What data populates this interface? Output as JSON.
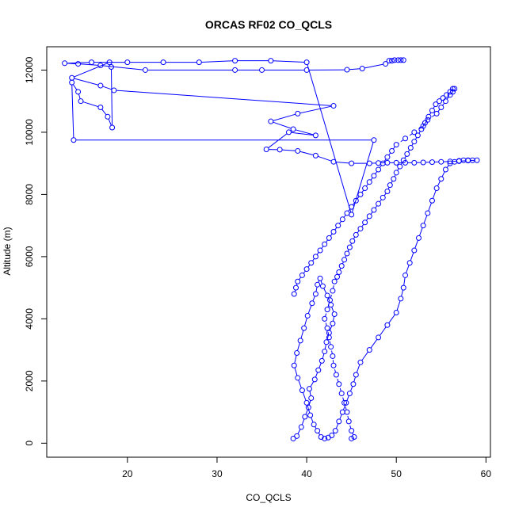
{
  "chart_data": {
    "type": "line",
    "title": "ORCAS RF02 CO_QCLS",
    "xlabel": "CO_QCLS",
    "ylabel": "Altitude (m)",
    "xlim": [
      11.0,
      60.5
    ],
    "ylim": [
      -450,
      12750
    ],
    "xticks": [
      20,
      30,
      40,
      50,
      60
    ],
    "yticks": [
      0,
      2000,
      4000,
      6000,
      8000,
      10000,
      12000
    ],
    "grid": false,
    "series_color": "#0000ff",
    "series": [
      {
        "style": "solid",
        "x": [
          38.5,
          38.9,
          39.4,
          39.8,
          40.2,
          40.5,
          40.3,
          40.9,
          41.3,
          41.7,
          42.0,
          42.2,
          42.5,
          42.9,
          43.1,
          42.7,
          42.3,
          41.8,
          41.5,
          41.2,
          41.0,
          40.6,
          40.1,
          39.7,
          39.3,
          38.9,
          38.6,
          39.0,
          39.5,
          40.0,
          40.4,
          40.8,
          41.2,
          41.6,
          42.0,
          42.4,
          42.8,
          43.2,
          43.6,
          44.0,
          44.4,
          44.8,
          45.2,
          45.5,
          46.0,
          47.0,
          48.0,
          49.0,
          50.0,
          50.5,
          50.8,
          51.0,
          51.5,
          52.0,
          52.5,
          53.0,
          53.5,
          54.0,
          54.5,
          55.0,
          55.5,
          56.0,
          56.5,
          57.0,
          57.5,
          58.0,
          58.5,
          59.0,
          58.0,
          57.0,
          56.0,
          55.0,
          54.0,
          53.0,
          52.0,
          51.0,
          50.0,
          49.0,
          48.0,
          47.0,
          45.0,
          43.0,
          41.0,
          39.0,
          37.0,
          35.5,
          38.0,
          41.0,
          38.5,
          36.0,
          39.0,
          43.0,
          18.5,
          17.0,
          13.8,
          18.0,
          18.2,
          18.3,
          17.8,
          17.0,
          14.8,
          14.5,
          13.8,
          14.0,
          47.5,
          45.0,
          40.0,
          36.0,
          32.0,
          28.0,
          24.0,
          20.0,
          16.0,
          13.0,
          14.5,
          17.0,
          22.0,
          32.0,
          35.0,
          40.0,
          44.5,
          46.2,
          48.8,
          49.2,
          49.5,
          49.8,
          50.2,
          50.5,
          50.8
        ],
        "y": [
          150,
          230,
          520,
          850,
          1150,
          1450,
          1750,
          2050,
          2350,
          2650,
          2950,
          3250,
          3550,
          3850,
          4150,
          4450,
          4750,
          5050,
          5300,
          5100,
          4800,
          4500,
          4100,
          3700,
          3300,
          2900,
          2500,
          2100,
          1700,
          1300,
          900,
          600,
          400,
          200,
          150,
          180,
          250,
          400,
          700,
          1000,
          1300,
          1600,
          1900,
          2200,
          2600,
          3000,
          3400,
          3800,
          4200,
          4650,
          5000,
          5400,
          5800,
          6200,
          6600,
          7000,
          7400,
          7800,
          8200,
          8500,
          8800,
          9000,
          9050,
          9080,
          9100,
          9100,
          9100,
          9100,
          9090,
          9070,
          9060,
          9050,
          9040,
          9030,
          9020,
          9020,
          9020,
          9020,
          9010,
          9000,
          9000,
          9050,
          9250,
          9400,
          9440,
          9450,
          10000,
          9900,
          10100,
          10350,
          10600,
          10850,
          11350,
          11500,
          11750,
          12250,
          12100,
          10150,
          10500,
          10800,
          11000,
          11300,
          11600,
          9750,
          9750,
          7350,
          12250,
          12300,
          12300,
          12250,
          12250,
          12250,
          12250,
          12220,
          12200,
          12150,
          12000,
          12000,
          12000,
          12000,
          12010,
          12050,
          12200,
          12300,
          12300,
          12320,
          12320,
          12320,
          12320
        ]
      },
      {
        "style": "dashed",
        "x": [
          45.0,
          45.3,
          45.0,
          44.7,
          44.5,
          44.2,
          43.9,
          43.6,
          43.3,
          43.0,
          42.9,
          42.7,
          42.5,
          42.3,
          42.0,
          42.3,
          42.6,
          42.9,
          43.1,
          43.4,
          43.6,
          43.9,
          44.2,
          44.5,
          44.8,
          45.1,
          45.5,
          46.0,
          46.5,
          47.0,
          47.5,
          48.0,
          48.5,
          49.0,
          49.3,
          49.7,
          50.0,
          50.4,
          50.8,
          51.2,
          51.6,
          52.0,
          52.4,
          52.8,
          53.2,
          53.6,
          54.0,
          54.4,
          54.8,
          55.2,
          55.6,
          56.0,
          56.3,
          56.5,
          56.3,
          56.0,
          55.5,
          55.0,
          54.5,
          53.5,
          53.0,
          52.0,
          51.0,
          50.0,
          49.5,
          49.0,
          48.5,
          48.0,
          47.5,
          47.0,
          46.5,
          46.0,
          45.5,
          45.0,
          44.5,
          44.0,
          43.5,
          43.0,
          42.5,
          42.0,
          41.5,
          41.0,
          40.5,
          40.0,
          39.5,
          39.0,
          38.8,
          38.6
        ],
        "y": [
          150,
          200,
          400,
          700,
          1000,
          1300,
          1600,
          1900,
          2200,
          2500,
          2800,
          3100,
          3400,
          3700,
          4000,
          4300,
          4600,
          4900,
          5200,
          5350,
          5500,
          5700,
          5900,
          6100,
          6300,
          6500,
          6700,
          6900,
          7100,
          7300,
          7500,
          7700,
          7900,
          8100,
          8300,
          8500,
          8700,
          8900,
          9100,
          9300,
          9500,
          9700,
          9900,
          10100,
          10300,
          10500,
          10700,
          10900,
          11000,
          11100,
          11200,
          11300,
          11400,
          11400,
          11300,
          11200,
          11000,
          10800,
          10600,
          10400,
          10200,
          10000,
          9800,
          9600,
          9400,
          9200,
          9000,
          8800,
          8600,
          8400,
          8200,
          8000,
          7800,
          7600,
          7400,
          7200,
          7000,
          6800,
          6600,
          6400,
          6200,
          6000,
          5800,
          5600,
          5400,
          5200,
          5000,
          4800
        ]
      }
    ]
  }
}
